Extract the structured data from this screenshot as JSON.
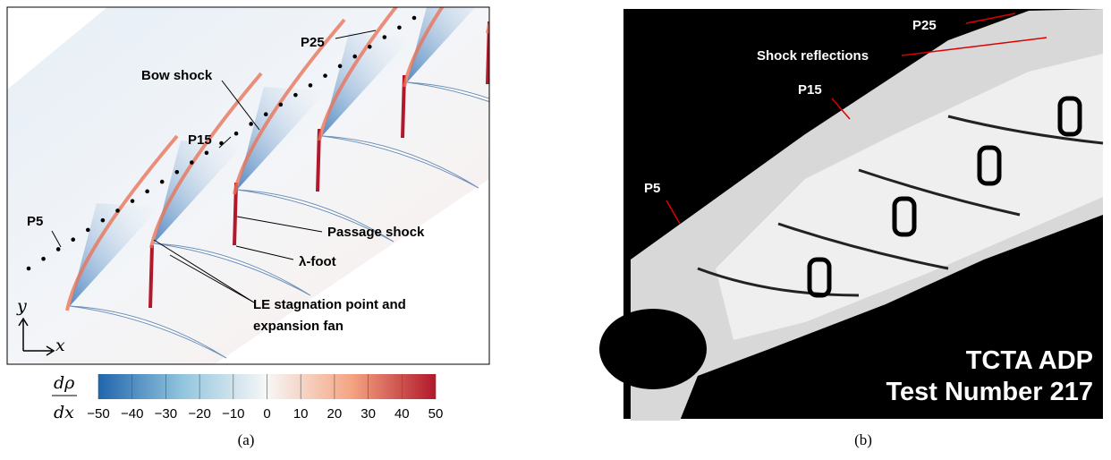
{
  "figure": {
    "panel_a": {
      "annotations": {
        "p5": "P5",
        "p15": "P15",
        "p25": "P25",
        "bow_shock": "Bow shock",
        "passage_shock": "Passage shock",
        "lambda_foot": "λ-foot",
        "le_line1": "LE stagnation point and",
        "le_line2": "expansion fan"
      },
      "axes": {
        "y": "y",
        "x": "x"
      },
      "colorbar": {
        "label_numerator": "dρ",
        "label_denominator": "dx",
        "ticks": [
          {
            "value": -50,
            "label": "−50"
          },
          {
            "value": -40,
            "label": "−40"
          },
          {
            "value": -30,
            "label": "−30"
          },
          {
            "value": -20,
            "label": "−20"
          },
          {
            "value": -10,
            "label": "−10"
          },
          0,
          10,
          20,
          30,
          40,
          50
        ]
      },
      "caption": "(a)"
    },
    "panel_b": {
      "annotations": {
        "p25": "P25",
        "shock_reflections": "Shock reflections",
        "p15": "P15",
        "p5": "P5",
        "line1": "TCTA ADP",
        "line2": "Test Number 217"
      },
      "caption": "(b)"
    }
  }
}
